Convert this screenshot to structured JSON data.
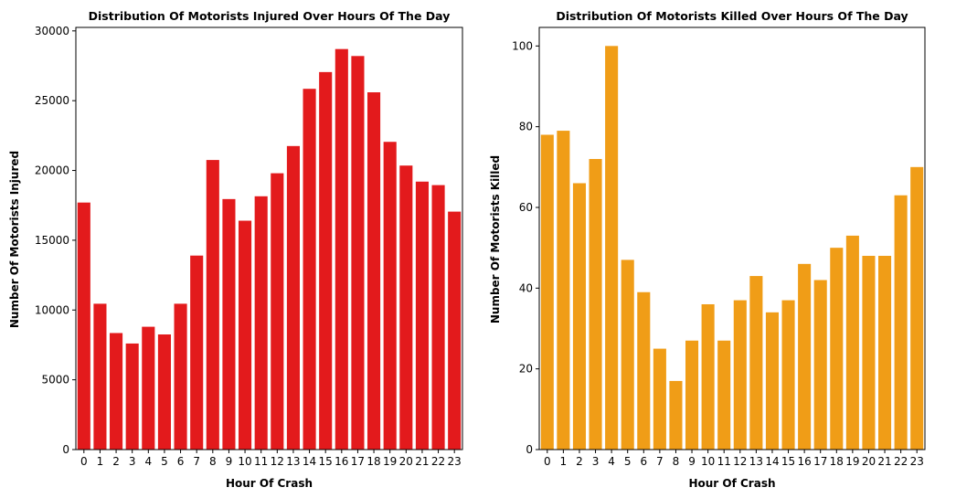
{
  "chart_data": [
    {
      "type": "bar",
      "title": "Distribution Of Motorists Injured Over Hours Of The Day",
      "xlabel": "Hour Of Crash",
      "ylabel": "Number Of Motorists Injured",
      "categories": [
        "0",
        "1",
        "2",
        "3",
        "4",
        "5",
        "6",
        "7",
        "8",
        "9",
        "10",
        "11",
        "12",
        "13",
        "14",
        "15",
        "16",
        "17",
        "18",
        "19",
        "20",
        "21",
        "22",
        "23"
      ],
      "values": [
        17700,
        10450,
        8350,
        7600,
        8800,
        8250,
        10450,
        13900,
        20750,
        17950,
        16400,
        18150,
        19800,
        21750,
        25850,
        27050,
        28700,
        28200,
        25600,
        22050,
        20350,
        19200,
        18950,
        17050
      ],
      "ylim": [
        0,
        30250
      ],
      "yticks": [
        0,
        5000,
        10000,
        15000,
        20000,
        25000,
        30000
      ],
      "color": "#e31a1c",
      "grid": false
    },
    {
      "type": "bar",
      "title": "Distribution Of Motorists Killed Over Hours Of The Day",
      "xlabel": "Hour Of Crash",
      "ylabel": "Number Of Motorists Killed",
      "categories": [
        "0",
        "1",
        "2",
        "3",
        "4",
        "5",
        "6",
        "7",
        "8",
        "9",
        "10",
        "11",
        "12",
        "13",
        "14",
        "15",
        "16",
        "17",
        "18",
        "19",
        "20",
        "21",
        "22",
        "23"
      ],
      "values": [
        78,
        79,
        66,
        72,
        100,
        47,
        39,
        25,
        17,
        27,
        36,
        27,
        37,
        43,
        34,
        37,
        46,
        42,
        50,
        53,
        48,
        48,
        63,
        70
      ],
      "ylim": [
        0,
        104.6
      ],
      "yticks": [
        0,
        20,
        40,
        60,
        80,
        100
      ],
      "color": "#f09d17",
      "grid": false
    }
  ]
}
